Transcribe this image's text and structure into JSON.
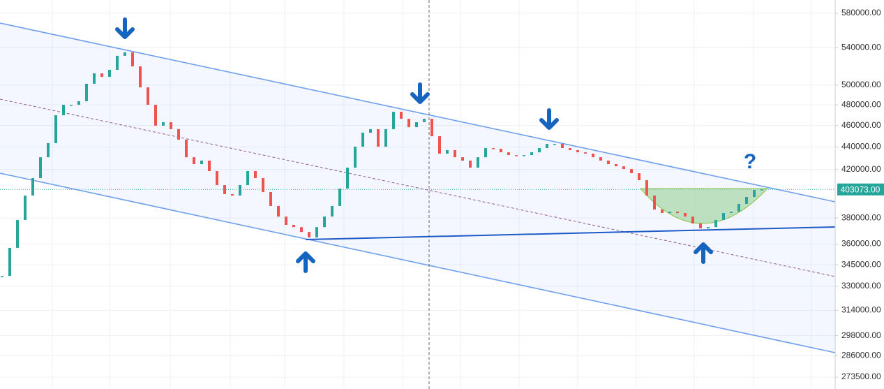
{
  "chart_data": {
    "type": "candlestick",
    "values": [
      337100,
      357200,
      378400,
      398000,
      412600,
      430800,
      443500,
      469800,
      480100,
      480100,
      483600,
      501400,
      512300,
      508600,
      516000,
      531200,
      535000,
      519700,
      497700,
      480100,
      459800,
      463100,
      456500,
      446700,
      430800,
      424700,
      427800,
      418600,
      406700,
      399200,
      398000,
      406700,
      418600,
      412600,
      400900,
      389500,
      381100,
      374600,
      372900,
      369200,
      365000,
      372900,
      381100,
      389500,
      403800,
      421600,
      440300,
      453200,
      456500,
      440300,
      456500,
      473200,
      466400,
      458400,
      463100,
      466400,
      449900,
      434000,
      437100,
      430800,
      427800,
      421600,
      430800,
      439000,
      438400,
      435200,
      432700,
      432100,
      432700,
      435200,
      439000,
      442800,
      442800,
      439000,
      437100,
      435200,
      434000,
      430800,
      427800,
      424700,
      422800,
      420400,
      416800,
      410800,
      398000,
      386700,
      383900,
      385000,
      383900,
      381100,
      375700,
      371900,
      372900,
      378400,
      383900,
      385000,
      391200,
      396800,
      402600,
      403073
    ],
    "up_color": "#26a69a",
    "down_color": "#ef5350",
    "ylim": [
      266900,
      596100
    ],
    "log_scale": true,
    "grid": true,
    "yticks": [
      {
        "value": 580000,
        "label": "580000.00"
      },
      {
        "value": 540000,
        "label": "540000.00"
      },
      {
        "value": 500000,
        "label": "500000.00"
      },
      {
        "value": 480000,
        "label": "480000.00"
      },
      {
        "value": 460000,
        "label": "460000.00"
      },
      {
        "value": 440000,
        "label": "440000.00"
      },
      {
        "value": 420000,
        "label": "420000.00"
      },
      {
        "value": 380000,
        "label": "380000.00"
      },
      {
        "value": 360000,
        "label": "360000.00"
      },
      {
        "value": 345000,
        "label": "345000.00"
      },
      {
        "value": 330000,
        "label": "330000.00"
      },
      {
        "value": 314000,
        "label": "314000.00"
      },
      {
        "value": 298000,
        "label": "298000.00"
      },
      {
        "value": 286000,
        "label": "286000.00"
      },
      {
        "value": 273500,
        "label": "273500.00"
      }
    ],
    "last_price": {
      "value": 403073,
      "label": "403073.00"
    },
    "annotations": [
      "?"
    ]
  }
}
